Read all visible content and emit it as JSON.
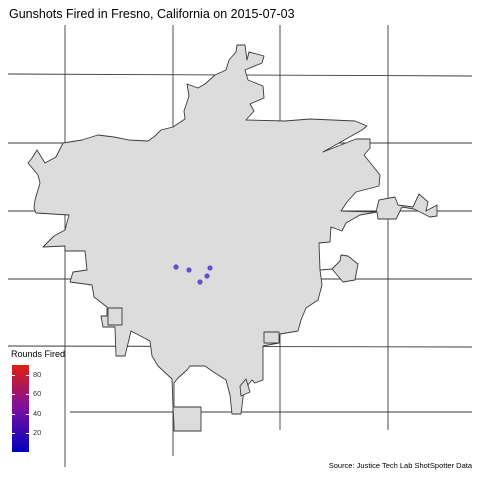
{
  "title": "Gunshots Fired in Fresno, California on 2015-07-03",
  "caption": "Source: Justice Tech Lab ShotSpotter Data",
  "legend": {
    "title": "Rounds Fired",
    "ticks": [
      "80",
      "60",
      "40",
      "20"
    ],
    "tick_values": [
      80,
      60,
      40,
      20
    ],
    "range": [
      1,
      90
    ],
    "color_low": "#0000c0",
    "color_high": "#e02010"
  },
  "colors": {
    "city_fill": "#dcdcdc",
    "city_outline": "#3a3a3a",
    "road_lines": "#3a3a3a",
    "point_color": "#6050d0"
  },
  "map_data": {
    "city": "Fresno, California",
    "date": "2015-07-03",
    "gunshot_incident_count": 5
  }
}
